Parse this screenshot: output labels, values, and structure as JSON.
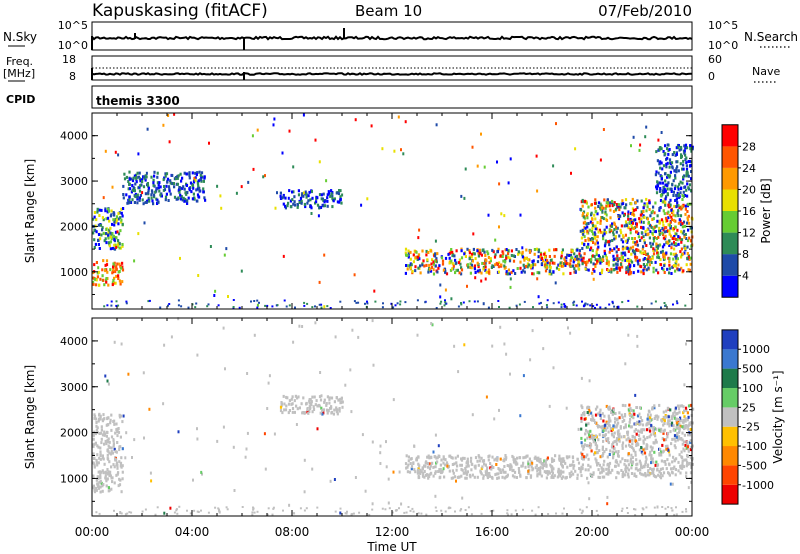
{
  "header": {
    "station": "Kapuskasing (fitACF)",
    "beam": "Beam 10",
    "date": "07/Feb/2010"
  },
  "nsky_panel": {
    "left_label": "N.Sky",
    "right_label": "N.Search",
    "left_ticks": [
      "10^5",
      "10^0"
    ],
    "right_ticks": [
      "10^5",
      "10^0"
    ]
  },
  "freq_panel": {
    "left_label_1": "Freq.",
    "left_label_2": "[MHz]",
    "right_label": "Nave",
    "left_ticks": [
      "18",
      "8"
    ],
    "right_ticks": [
      "60",
      "0"
    ]
  },
  "cpid_panel": {
    "label": "CPID",
    "program": "themis 3300"
  },
  "x_axis": {
    "ticks": [
      "00:00",
      "04:00",
      "08:00",
      "12:00",
      "16:00",
      "20:00",
      "00:00"
    ],
    "title": "Time UT"
  },
  "chart_data": [
    {
      "type": "heatmap",
      "id": "power",
      "ylabel": "Slant Range [km]",
      "yticks": [
        "1000",
        "2000",
        "3000",
        "4000"
      ],
      "ylim": [
        180,
        4500
      ],
      "xlim_hours": [
        0,
        24
      ],
      "colorbar": {
        "label": "Power [dB]",
        "ticks": [
          "4",
          "8",
          "12",
          "16",
          "20",
          "24",
          "28"
        ],
        "colors": [
          "#0000ff",
          "#1e4aa8",
          "#2e8b57",
          "#66cc33",
          "#e8e000",
          "#ff9900",
          "#ff5500",
          "#ff0000"
        ]
      },
      "regions": [
        {
          "t": [
            0.0,
            1.2
          ],
          "r": [
            700,
            1250
          ],
          "level": "high"
        },
        {
          "t": [
            0.0,
            1.2
          ],
          "r": [
            1500,
            2400
          ],
          "level": "mid"
        },
        {
          "t": [
            1.2,
            4.5
          ],
          "r": [
            2500,
            3200
          ],
          "level": "low"
        },
        {
          "t": [
            7.5,
            10.0
          ],
          "r": [
            2400,
            2800
          ],
          "level": "low"
        },
        {
          "t": [
            12.5,
            24.0
          ],
          "r": [
            950,
            1500
          ],
          "level": "mixed"
        },
        {
          "t": [
            19.5,
            24.0
          ],
          "r": [
            1500,
            2600
          ],
          "level": "mixed"
        },
        {
          "t": [
            22.5,
            24.0
          ],
          "r": [
            2600,
            3800
          ],
          "level": "low"
        }
      ]
    },
    {
      "type": "heatmap",
      "id": "velocity",
      "ylabel": "Slant Range [km]",
      "yticks": [
        "1000",
        "2000",
        "3000",
        "4000"
      ],
      "ylim": [
        180,
        4500
      ],
      "xlim_hours": [
        0,
        24
      ],
      "colorbar": {
        "label": "Velocity [m s⁻¹]",
        "ticks": [
          "1000",
          "500",
          "100",
          "25",
          "-25",
          "-100",
          "-500",
          "-1000"
        ],
        "colors": [
          "#1f3fbf",
          "#3a78d0",
          "#1e7a4a",
          "#66cc66",
          "#c0c0c0",
          "#ffc000",
          "#ff8800",
          "#ff4400",
          "#ee0000"
        ]
      },
      "regions": [
        {
          "t": [
            0.0,
            1.2
          ],
          "r": [
            700,
            2400
          ],
          "level": "ground"
        },
        {
          "t": [
            7.5,
            10.0
          ],
          "r": [
            2400,
            2800
          ],
          "level": "ground"
        },
        {
          "t": [
            12.5,
            24.0
          ],
          "r": [
            1000,
            1500
          ],
          "level": "ground"
        },
        {
          "t": [
            19.5,
            24.0
          ],
          "r": [
            1500,
            2600
          ],
          "level": "mixed"
        }
      ]
    }
  ]
}
